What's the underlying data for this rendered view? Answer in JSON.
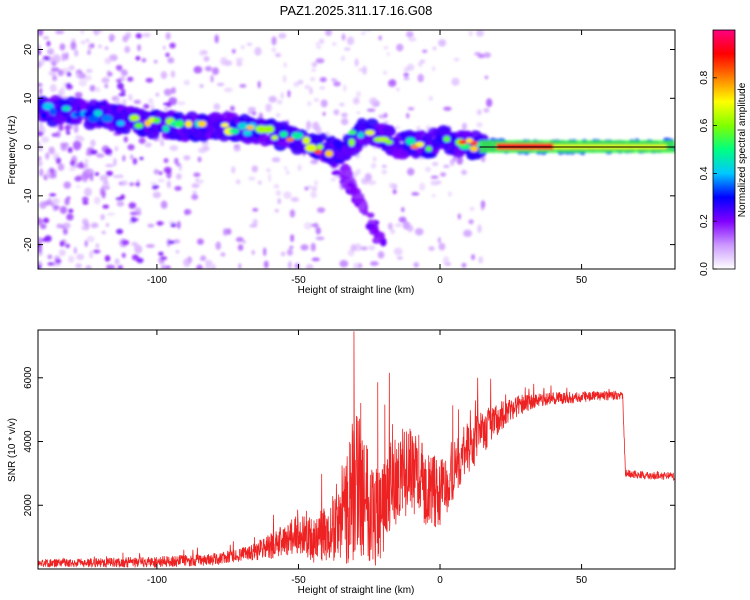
{
  "title": "PAZ1.2025.311.17.16.G08",
  "chart_data": [
    {
      "type": "heatmap",
      "name": "spectrogram",
      "title": "PAZ1.2025.311.17.16.G08",
      "xlabel": "Height of straight line (km)",
      "ylabel": "Frequency (Hz)",
      "xlim": [
        -142,
        83
      ],
      "ylim": [
        -25,
        24
      ],
      "xticks": [
        -100,
        -50,
        0,
        50
      ],
      "yticks": [
        -20,
        -10,
        0,
        10,
        20
      ],
      "ridge": {
        "x": [
          -140,
          -120,
          -105,
          -90,
          -75,
          -60,
          -50,
          -42,
          -35,
          -28,
          -20,
          -15,
          -10,
          -5,
          0,
          5,
          10,
          20,
          30,
          50,
          70,
          83
        ],
        "y": [
          7.5,
          6.5,
          5,
          4,
          4,
          3,
          1.5,
          0,
          -1,
          3,
          2,
          0,
          1,
          0,
          2,
          1,
          0.6,
          0.3,
          0,
          0,
          0.2,
          0.3
        ]
      },
      "branches": [
        {
          "x": [
            -40,
            -32,
            -25,
            -20
          ],
          "y": [
            -2,
            -8,
            -14,
            -20
          ]
        },
        {
          "x": [
            -35,
            -28,
            -22
          ],
          "y": [
            -3,
            -11,
            -19
          ]
        }
      ],
      "colorbar": {
        "label": "Normalized spectral amplitude",
        "range": [
          0,
          1
        ],
        "ticks": [
          "0.0",
          "0.2",
          "0.4",
          "0.6",
          "0.8"
        ],
        "colors": [
          "#ffffff",
          "#cc99ff",
          "#8000ff",
          "#0000ff",
          "#00c8ff",
          "#00ff80",
          "#80ff00",
          "#ffff00",
          "#ff8000",
          "#ff0000",
          "#ff0080"
        ]
      }
    },
    {
      "type": "line",
      "name": "snr",
      "xlabel": "Height of straight line (km)",
      "ylabel": "SNR (10 * v/v)",
      "xlim": [
        -142,
        83
      ],
      "ylim": [
        0,
        7500
      ],
      "xticks": [
        -100,
        -50,
        0,
        50
      ],
      "yticks": [
        2000,
        4000,
        6000
      ],
      "color": "#ee2222",
      "envelope": {
        "x": [
          -142,
          -100,
          -80,
          -70,
          -60,
          -55,
          -50,
          -45,
          -40,
          -35,
          -32,
          -29,
          -27,
          -25,
          -22,
          -20,
          -18,
          -15,
          -10,
          -5,
          0,
          5,
          10,
          15,
          20,
          25,
          30,
          35,
          40,
          50,
          60,
          64.5,
          65.5,
          70,
          83
        ],
        "y": [
          180,
          220,
          300,
          450,
          700,
          900,
          1100,
          900,
          1100,
          1600,
          2200,
          2800,
          2500,
          2200,
          1600,
          1800,
          2500,
          2900,
          3100,
          2600,
          2300,
          3200,
          3800,
          4300,
          4700,
          5000,
          5200,
          5300,
          5350,
          5400,
          5450,
          5450,
          3000,
          2950,
          2900
        ]
      },
      "noise_amp": {
        "x": [
          -142,
          -70,
          -55,
          -45,
          -38,
          -30,
          -25,
          -20,
          -15,
          -10,
          0,
          15,
          25,
          35,
          60,
          65,
          83
        ],
        "y": [
          120,
          200,
          500,
          700,
          1000,
          2400,
          2000,
          1500,
          1500,
          1300,
          1100,
          700,
          350,
          200,
          150,
          120,
          120
        ]
      },
      "spikes": [
        {
          "x": -30.4,
          "y": 7450
        },
        {
          "x": -22.0,
          "y": 5850
        },
        {
          "x": -28.0,
          "y": 5200
        },
        {
          "x": -19.5,
          "y": 5150
        },
        {
          "x": 6.5,
          "y": 5000
        },
        {
          "x": -7.5,
          "y": 4200
        }
      ]
    }
  ]
}
